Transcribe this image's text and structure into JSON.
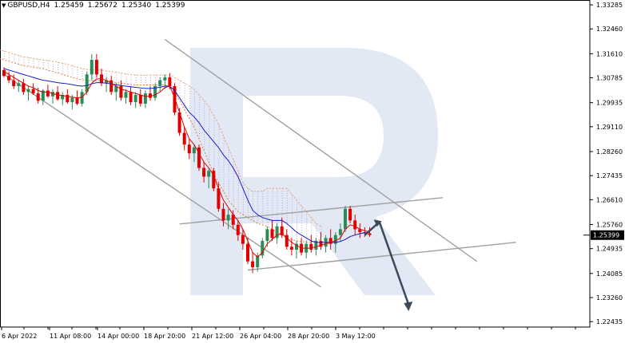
{
  "header": {
    "symbol": "GBPUSD,H4",
    "open": "1.25459",
    "high": "1.25672",
    "low": "1.25340",
    "close": "1.25399"
  },
  "chart_data": {
    "type": "candlestick",
    "symbol": "GBPUSD",
    "timeframe": "H4",
    "ylim": [
      1.2225,
      1.3345
    ],
    "y_ticks": [
      "1.33285",
      "1.32460",
      "1.31610",
      "1.30785",
      "1.29935",
      "1.29110",
      "1.28260",
      "1.27435",
      "1.26610",
      "1.25760",
      "1.24935",
      "1.24085",
      "1.23260",
      "1.22435"
    ],
    "x_ticks": [
      "6 Apr 2022",
      "11 Apr 08:00",
      "14 Apr 00:00",
      "18 Apr 20:00",
      "21 Apr 12:00",
      "26 Apr 04:00",
      "28 Apr 20:00",
      "3 May 12:00"
    ],
    "current_price": "1.25399",
    "bars_count": 76,
    "candles": [
      [
        1.3105,
        1.3115,
        1.308,
        1.3085
      ],
      [
        1.3085,
        1.31,
        1.306,
        1.307
      ],
      [
        1.307,
        1.309,
        1.304,
        1.305
      ],
      [
        1.305,
        1.307,
        1.303,
        1.306
      ],
      [
        1.306,
        1.3075,
        1.302,
        1.303
      ],
      [
        1.303,
        1.305,
        1.3,
        1.304
      ],
      [
        1.304,
        1.306,
        1.302,
        1.3025
      ],
      [
        1.3025,
        1.3045,
        1.299,
        1.3
      ],
      [
        1.3,
        1.304,
        1.2985,
        1.3035
      ],
      [
        1.3035,
        1.3055,
        1.301,
        1.3015
      ],
      [
        1.3015,
        1.304,
        1.299,
        1.303
      ],
      [
        1.303,
        1.305,
        1.3,
        1.3005
      ],
      [
        1.3005,
        1.303,
        1.2985,
        1.302
      ],
      [
        1.302,
        1.304,
        1.299,
        1.2995
      ],
      [
        1.2995,
        1.302,
        1.297,
        1.301
      ],
      [
        1.301,
        1.3035,
        1.2985,
        1.299
      ],
      [
        1.299,
        1.304,
        1.298,
        1.303
      ],
      [
        1.303,
        1.31,
        1.302,
        1.309
      ],
      [
        1.309,
        1.316,
        1.307,
        1.314
      ],
      [
        1.314,
        1.316,
        1.308,
        1.309
      ],
      [
        1.309,
        1.311,
        1.305,
        1.306
      ],
      [
        1.306,
        1.308,
        1.303,
        1.307
      ],
      [
        1.307,
        1.3085,
        1.302,
        1.303
      ],
      [
        1.303,
        1.306,
        1.3,
        1.305
      ],
      [
        1.305,
        1.307,
        1.3,
        1.301
      ],
      [
        1.301,
        1.304,
        1.299,
        1.303
      ],
      [
        1.303,
        1.305,
        1.2985,
        1.2995
      ],
      [
        1.2995,
        1.303,
        1.2975,
        1.302
      ],
      [
        1.302,
        1.304,
        1.298,
        1.299
      ],
      [
        1.299,
        1.3035,
        1.2975,
        1.3025
      ],
      [
        1.3025,
        1.305,
        1.3,
        1.301
      ],
      [
        1.301,
        1.306,
        1.3,
        1.305
      ],
      [
        1.305,
        1.308,
        1.303,
        1.307
      ],
      [
        1.307,
        1.309,
        1.304,
        1.308
      ],
      [
        1.308,
        1.3095,
        1.304,
        1.305
      ],
      [
        1.305,
        1.306,
        1.295,
        1.296
      ],
      [
        1.296,
        1.2975,
        1.288,
        1.289
      ],
      [
        1.289,
        1.291,
        1.283,
        1.285
      ],
      [
        1.285,
        1.287,
        1.28,
        1.282
      ],
      [
        1.282,
        1.285,
        1.279,
        1.284
      ],
      [
        1.284,
        1.285,
        1.276,
        1.277
      ],
      [
        1.277,
        1.279,
        1.272,
        1.274
      ],
      [
        1.274,
        1.277,
        1.27,
        1.276
      ],
      [
        1.276,
        1.277,
        1.269,
        1.27
      ],
      [
        1.27,
        1.272,
        1.262,
        1.263
      ],
      [
        1.263,
        1.265,
        1.257,
        1.259
      ],
      [
        1.259,
        1.263,
        1.256,
        1.261
      ],
      [
        1.261,
        1.2625,
        1.256,
        1.2575
      ],
      [
        1.2575,
        1.259,
        1.252,
        1.254
      ],
      [
        1.254,
        1.256,
        1.249,
        1.251
      ],
      [
        1.251,
        1.253,
        1.244,
        1.245
      ],
      [
        1.245,
        1.248,
        1.241,
        1.243
      ],
      [
        1.243,
        1.248,
        1.2415,
        1.247
      ],
      [
        1.247,
        1.253,
        1.246,
        1.252
      ],
      [
        1.252,
        1.257,
        1.25,
        1.256
      ],
      [
        1.256,
        1.259,
        1.252,
        1.253
      ],
      [
        1.253,
        1.258,
        1.251,
        1.257
      ],
      [
        1.257,
        1.26,
        1.253,
        1.254
      ],
      [
        1.254,
        1.256,
        1.249,
        1.25
      ],
      [
        1.25,
        1.253,
        1.247,
        1.249
      ],
      [
        1.249,
        1.252,
        1.246,
        1.251
      ],
      [
        1.251,
        1.253,
        1.247,
        1.248
      ],
      [
        1.248,
        1.252,
        1.246,
        1.251
      ],
      [
        1.251,
        1.254,
        1.248,
        1.249
      ],
      [
        1.249,
        1.253,
        1.247,
        1.252
      ],
      [
        1.252,
        1.255,
        1.249,
        1.25
      ],
      [
        1.25,
        1.254,
        1.248,
        1.253
      ],
      [
        1.253,
        1.256,
        1.249,
        1.251
      ],
      [
        1.251,
        1.255,
        1.248,
        1.254
      ],
      [
        1.254,
        1.258,
        1.252,
        1.256
      ],
      [
        1.256,
        1.264,
        1.255,
        1.263
      ],
      [
        1.263,
        1.264,
        1.258,
        1.259
      ],
      [
        1.259,
        1.261,
        1.254,
        1.256
      ],
      [
        1.256,
        1.258,
        1.253,
        1.255
      ],
      [
        1.255,
        1.2567,
        1.2534,
        1.2546
      ],
      [
        1.2546,
        1.2567,
        1.2534,
        1.254
      ]
    ],
    "lines": {
      "red_ma": [
        1.31,
        1.309,
        1.308,
        1.307,
        1.306,
        1.305,
        1.3045,
        1.3035,
        1.303,
        1.303,
        1.3025,
        1.302,
        1.3018,
        1.3015,
        1.3012,
        1.301,
        1.3012,
        1.303,
        1.306,
        1.3075,
        1.3075,
        1.307,
        1.306,
        1.305,
        1.304,
        1.3035,
        1.303,
        1.3025,
        1.302,
        1.3015,
        1.3015,
        1.302,
        1.303,
        1.3045,
        1.305,
        1.301,
        1.296,
        1.291,
        1.287,
        1.285,
        1.282,
        1.279,
        1.277,
        1.2745,
        1.27,
        1.266,
        1.2635,
        1.261,
        1.259,
        1.256,
        1.252,
        1.248,
        1.2465,
        1.248,
        1.251,
        1.2525,
        1.254,
        1.2545,
        1.253,
        1.2515,
        1.2505,
        1.2495,
        1.2495,
        1.2495,
        1.25,
        1.2505,
        1.251,
        1.2515,
        1.252,
        1.253,
        1.256,
        1.2575,
        1.257,
        1.256,
        1.2555,
        1.255
      ],
      "blue_ma": [
        1.311,
        1.3105,
        1.31,
        1.3095,
        1.309,
        1.3085,
        1.308,
        1.3075,
        1.307,
        1.3068,
        1.3065,
        1.3062,
        1.306,
        1.3058,
        1.3055,
        1.3052,
        1.305,
        1.3052,
        1.3058,
        1.3062,
        1.3062,
        1.306,
        1.3058,
        1.3055,
        1.3052,
        1.305,
        1.3048,
        1.3046,
        1.3044,
        1.3042,
        1.3042,
        1.3044,
        1.3046,
        1.305,
        1.305,
        1.3035,
        1.301,
        1.2985,
        1.296,
        1.2945,
        1.2925,
        1.29,
        1.288,
        1.286,
        1.284,
        1.2815,
        1.2795,
        1.277,
        1.274,
        1.27,
        1.266,
        1.2625,
        1.261,
        1.26,
        1.2595,
        1.259,
        1.259,
        1.259,
        1.258,
        1.2565,
        1.255,
        1.254,
        1.253,
        1.252,
        1.2515,
        1.2515,
        1.2515,
        1.2515,
        1.2515,
        1.2518,
        1.2525,
        1.2535,
        1.254,
        1.2545,
        1.2548,
        1.255
      ],
      "cloud_top": [
        1.3175,
        1.317,
        1.3165,
        1.316,
        1.3155,
        1.315,
        1.3148,
        1.3145,
        1.3142,
        1.314,
        1.3138,
        1.3135,
        1.3132,
        1.3128,
        1.3125,
        1.312,
        1.3115,
        1.311,
        1.3108,
        1.3105,
        1.3105,
        1.3105,
        1.3102,
        1.31,
        1.3098,
        1.3095,
        1.3092,
        1.309,
        1.3088,
        1.3088,
        1.3088,
        1.3088,
        1.3088,
        1.3088,
        1.3088,
        1.3088,
        1.308,
        1.307,
        1.306,
        1.305,
        1.304,
        1.302,
        1.3,
        1.298,
        1.295,
        1.292,
        1.288,
        1.284,
        1.28,
        1.276,
        1.272,
        1.27,
        1.269,
        1.269,
        1.269,
        1.27,
        1.27,
        1.27,
        1.27,
        1.27,
        1.268,
        1.266,
        1.264,
        1.262,
        1.26,
        1.258,
        1.257
      ],
      "cloud_bottom": [
        1.3145,
        1.314,
        1.3135,
        1.313,
        1.3125,
        1.312,
        1.3118,
        1.3115,
        1.3112,
        1.311,
        1.3105,
        1.31,
        1.3095,
        1.309,
        1.3085,
        1.308,
        1.3075,
        1.3072,
        1.307,
        1.3068,
        1.3068,
        1.3068,
        1.3066,
        1.3064,
        1.3062,
        1.306,
        1.3058,
        1.3056,
        1.3054,
        1.3054,
        1.3054,
        1.3054,
        1.3054,
        1.3054,
        1.3054,
        1.305,
        1.303,
        1.3,
        1.297,
        1.294,
        1.291,
        1.287,
        1.283,
        1.279,
        1.275,
        1.272,
        1.269,
        1.266,
        1.264,
        1.262,
        1.261,
        1.26,
        1.259,
        1.258,
        1.2575,
        1.257,
        1.256,
        1.255,
        1.254,
        1.253,
        1.2525,
        1.252,
        1.2518,
        1.2516,
        1.2515,
        1.252,
        1.2525
      ]
    }
  },
  "colors": {
    "bull": "#2e8b57",
    "bear": "#e00000",
    "red_ma": "#e00000",
    "blue_ma": "#1a1acc",
    "cloud_top": "#f0a070",
    "cloud_bottom": "#e08040",
    "cloud_fill": "#b6a6d6",
    "trend_lines": "#a0a0a0",
    "forecast_arrow": "#3b4a5a",
    "grid": "#dcdcdc",
    "price_tag": "#000000"
  }
}
